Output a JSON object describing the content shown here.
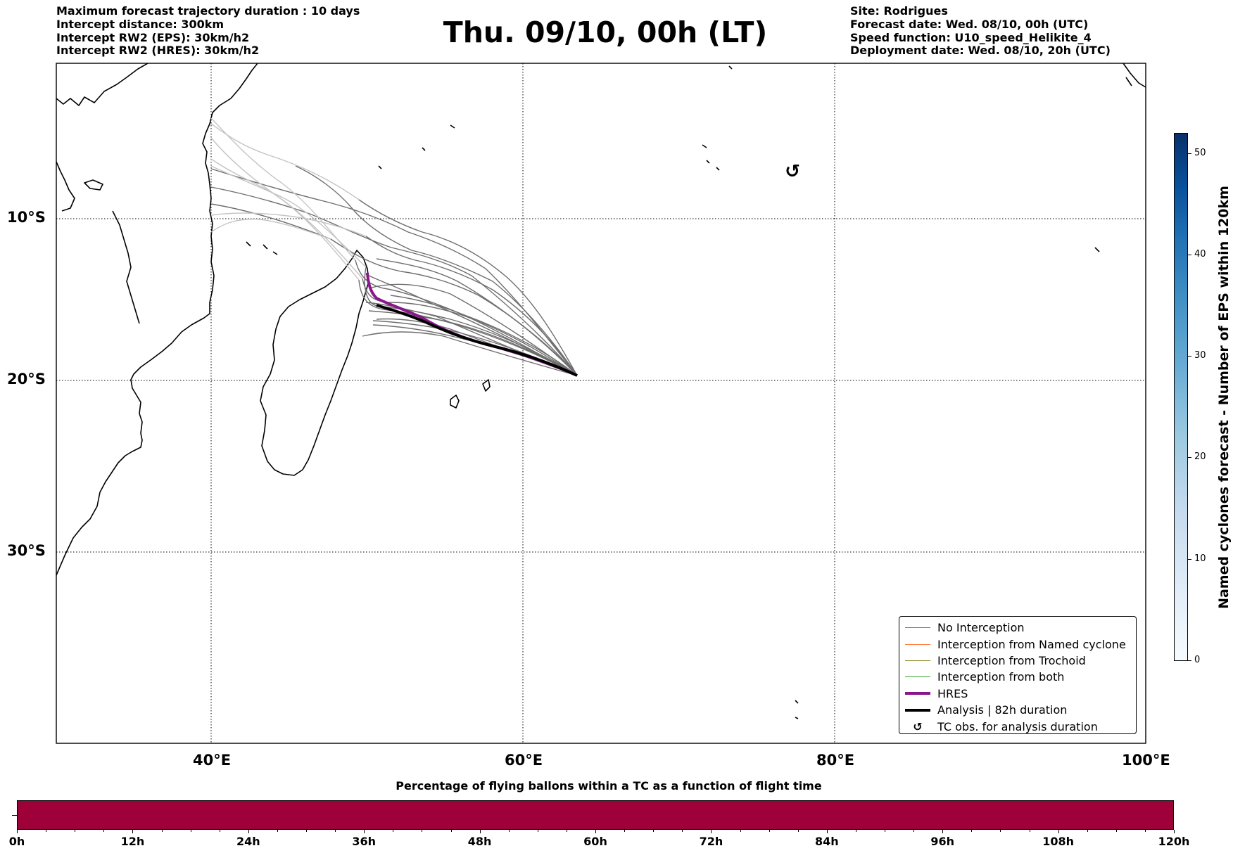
{
  "header_left": {
    "line1": "Maximum forecast trajectory duration : 10 days",
    "line2": "Intercept distance: 300km",
    "line3": "Intercept RW2 (EPS):  30km/h2",
    "line4": "Intercept RW2 (HRES): 30km/h2"
  },
  "title": "Thu. 09/10, 00h (LT)",
  "header_right": {
    "line1": "Site: Rodrigues",
    "line2": "Forecast date: Wed. 08/10, 00h (UTC)",
    "line3": "Speed function: U10_speed_Helikite_4",
    "line4": "Deployment date: Wed. 08/10, 20h (UTC)"
  },
  "map": {
    "lon_range": [
      30,
      100
    ],
    "lat_range": [
      -42,
      -1
    ],
    "lat_labels": [
      "10°S",
      "20°S",
      "30°S"
    ],
    "lat_values": [
      -10,
      -20,
      -30
    ],
    "lon_labels": [
      "40°E",
      "60°E",
      "80°E",
      "100°E"
    ],
    "lon_values": [
      40,
      60,
      80,
      100
    ],
    "launch_site": {
      "name": "Rodrigues",
      "lon": 63.4,
      "lat": -19.7
    },
    "tc_observation": {
      "symbol": "↺",
      "lon": 77.3,
      "lat": -6.5
    }
  },
  "legend": {
    "items": [
      {
        "label": "No Interception",
        "color": "#777777",
        "style": "thin"
      },
      {
        "label": "Interception from Named cyclone",
        "color": "#ff7f3f",
        "style": "thin"
      },
      {
        "label": "Interception from Trochoid",
        "color": "#8b8b2a",
        "style": "thin"
      },
      {
        "label": "Interception from both",
        "color": "#2ca02c",
        "style": "thin"
      },
      {
        "label": "HRES",
        "color": "#8b168b",
        "style": "thick"
      },
      {
        "label": "Analysis | 82h duration",
        "color": "#000000",
        "style": "thick"
      },
      {
        "label": "TC obs. for analysis duration",
        "symbol": "↺",
        "style": "marker"
      }
    ]
  },
  "colorbar_vertical": {
    "label": "Named cyclones forecast - Number of EPS within 120km",
    "ticks": [
      "0",
      "10",
      "20",
      "30",
      "40",
      "50"
    ],
    "range": [
      0,
      52
    ]
  },
  "colorbar_horizontal": {
    "title": "Percentage of flying ballons within a TC as a function of flight time",
    "ticks": [
      "0h",
      "12h",
      "24h",
      "36h",
      "48h",
      "60h",
      "72h",
      "84h",
      "96h",
      "108h",
      "120h"
    ],
    "range": [
      0,
      120
    ],
    "fill_color": "#9e003a"
  }
}
